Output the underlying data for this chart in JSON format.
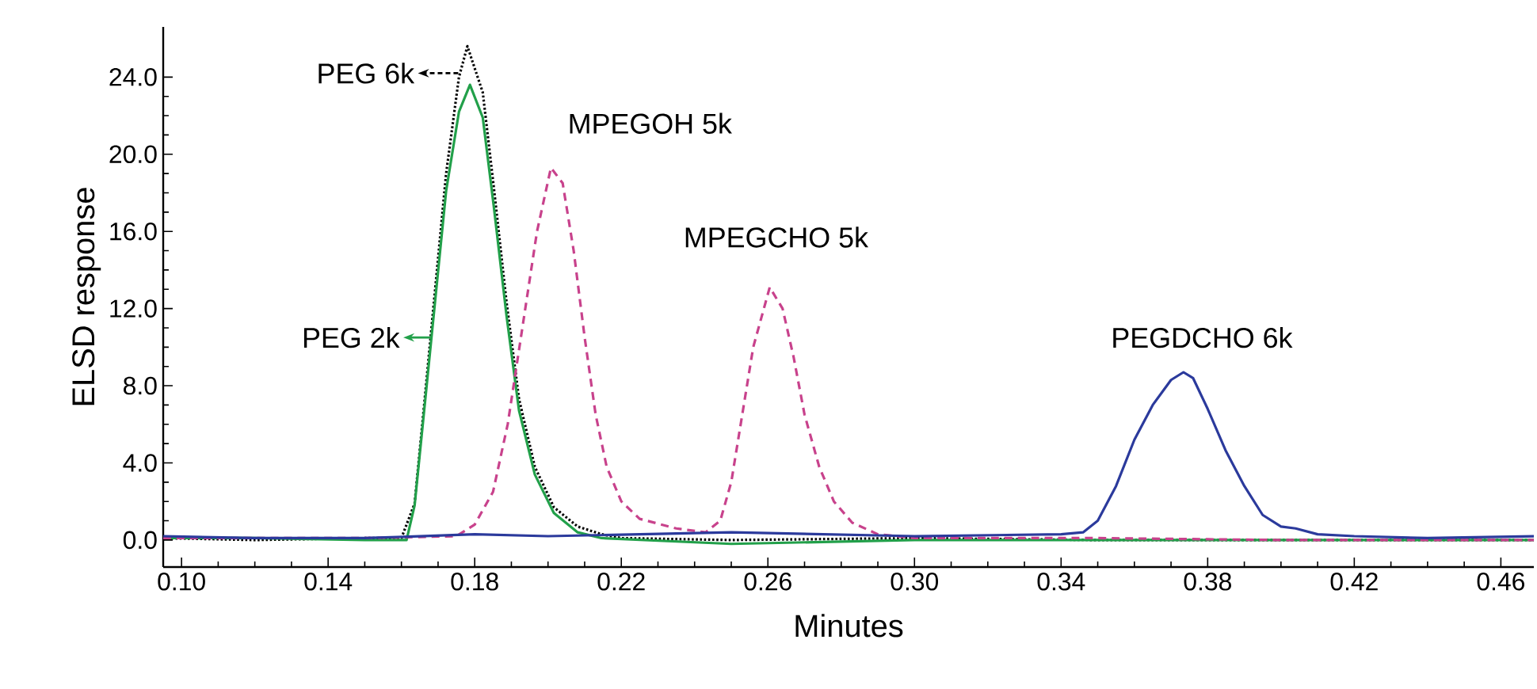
{
  "chart_data": {
    "type": "line",
    "xlabel": "Minutes",
    "ylabel": "ELSD response",
    "xlim": [
      0.095,
      0.469
    ],
    "ylim": [
      -1.4,
      26.6
    ],
    "xticks": [
      {
        "value": 0.1,
        "label": "0.10"
      },
      {
        "value": 0.14,
        "label": "0.14"
      },
      {
        "value": 0.18,
        "label": "0.18"
      },
      {
        "value": 0.22,
        "label": "0.22"
      },
      {
        "value": 0.26,
        "label": "0.26"
      },
      {
        "value": 0.3,
        "label": "0.30"
      },
      {
        "value": 0.34,
        "label": "0.34"
      },
      {
        "value": 0.38,
        "label": "0.38"
      },
      {
        "value": 0.42,
        "label": "0.42"
      },
      {
        "value": 0.46,
        "label": "0.46"
      }
    ],
    "yticks": [
      {
        "value": 0,
        "label": "0.0"
      },
      {
        "value": 4,
        "label": "4.0"
      },
      {
        "value": 8,
        "label": "8.0"
      },
      {
        "value": 12,
        "label": "12.0"
      },
      {
        "value": 16,
        "label": "16.0"
      },
      {
        "value": 20,
        "label": "20.0"
      },
      {
        "value": 24,
        "label": "24.0"
      }
    ],
    "grid": false,
    "marker": "none",
    "series": [
      {
        "color": "#000000",
        "line_style": "dotted",
        "x": [
          0.095,
          0.12,
          0.15,
          0.16,
          0.1636,
          0.1662,
          0.1692,
          0.1722,
          0.1757,
          0.178,
          0.1822,
          0.1852,
          0.1887,
          0.1921,
          0.1964,
          0.2016,
          0.2081,
          0.2146,
          0.22,
          0.25,
          0.3,
          0.35,
          0.4,
          0.469
        ],
        "values": [
          0.1,
          0.0,
          0.1,
          0.1,
          1.9,
          7.0,
          13.0,
          19.0,
          24.0,
          25.6,
          23.2,
          18.3,
          12.3,
          7.3,
          3.8,
          1.7,
          0.7,
          0.3,
          0.1,
          0.0,
          0.1,
          0.0,
          0.0,
          0.0
        ]
      },
      {
        "color": "#22a04a",
        "line_style": "solid",
        "x": [
          0.095,
          0.12,
          0.15,
          0.1614,
          0.1636,
          0.1662,
          0.1692,
          0.1722,
          0.1757,
          0.1787,
          0.1822,
          0.1852,
          0.1887,
          0.1921,
          0.1964,
          0.2016,
          0.2081,
          0.2146,
          0.25,
          0.3,
          0.35,
          0.4,
          0.469
        ],
        "values": [
          0.1,
          0.1,
          0.0,
          0.0,
          1.8,
          6.7,
          12.4,
          18.1,
          22.2,
          23.6,
          21.9,
          17.3,
          11.6,
          6.7,
          3.4,
          1.4,
          0.4,
          0.1,
          -0.2,
          0.0,
          0.0,
          0.0,
          0.0
        ]
      },
      {
        "color": "#c8428c",
        "line_style": "dashed",
        "x": [
          0.095,
          0.15,
          0.175,
          0.18,
          0.185,
          0.189,
          0.193,
          0.197,
          0.2008,
          0.204,
          0.207,
          0.21,
          0.213,
          0.216,
          0.22,
          0.225,
          0.235,
          0.243,
          0.247,
          0.25,
          0.253,
          0.256,
          0.2605,
          0.264,
          0.267,
          0.27,
          0.274,
          0.278,
          0.283,
          0.29,
          0.3,
          0.35,
          0.4,
          0.469
        ],
        "values": [
          0.1,
          0.1,
          0.2,
          0.8,
          2.5,
          6.0,
          11.0,
          16.0,
          19.3,
          18.5,
          15.0,
          10.5,
          6.5,
          3.8,
          2.0,
          1.1,
          0.6,
          0.4,
          1.0,
          3.0,
          6.5,
          10.0,
          13.1,
          12.0,
          9.5,
          6.5,
          3.8,
          2.0,
          0.9,
          0.3,
          0.1,
          0.1,
          0.0,
          0.0
        ]
      },
      {
        "color": "#2b3a9c",
        "line_style": "solid",
        "x": [
          0.095,
          0.12,
          0.15,
          0.18,
          0.2,
          0.25,
          0.3,
          0.34,
          0.346,
          0.35,
          0.355,
          0.36,
          0.365,
          0.37,
          0.3734,
          0.376,
          0.38,
          0.385,
          0.39,
          0.395,
          0.4,
          0.404,
          0.41,
          0.42,
          0.44,
          0.469
        ],
        "values": [
          0.2,
          0.1,
          0.1,
          0.3,
          0.2,
          0.4,
          0.2,
          0.3,
          0.4,
          1.0,
          2.8,
          5.2,
          7.0,
          8.3,
          8.7,
          8.4,
          6.8,
          4.6,
          2.8,
          1.3,
          0.7,
          0.6,
          0.3,
          0.2,
          0.1,
          0.2
        ]
      }
    ],
    "annotations": [
      {
        "text": "PEG 6k",
        "x": 0.1755,
        "y": 24.2
      },
      {
        "text": "PEG 2k",
        "x": 0.168,
        "y": 10.5
      },
      {
        "text": "MPEGOH 5k",
        "x": 0.2008,
        "y": 19.3
      },
      {
        "text": "MPEGCHO 5k",
        "x": 0.2605,
        "y": 13.1
      },
      {
        "text": "PEGDCHO 6k",
        "x": 0.3734,
        "y": 8.7
      }
    ]
  }
}
